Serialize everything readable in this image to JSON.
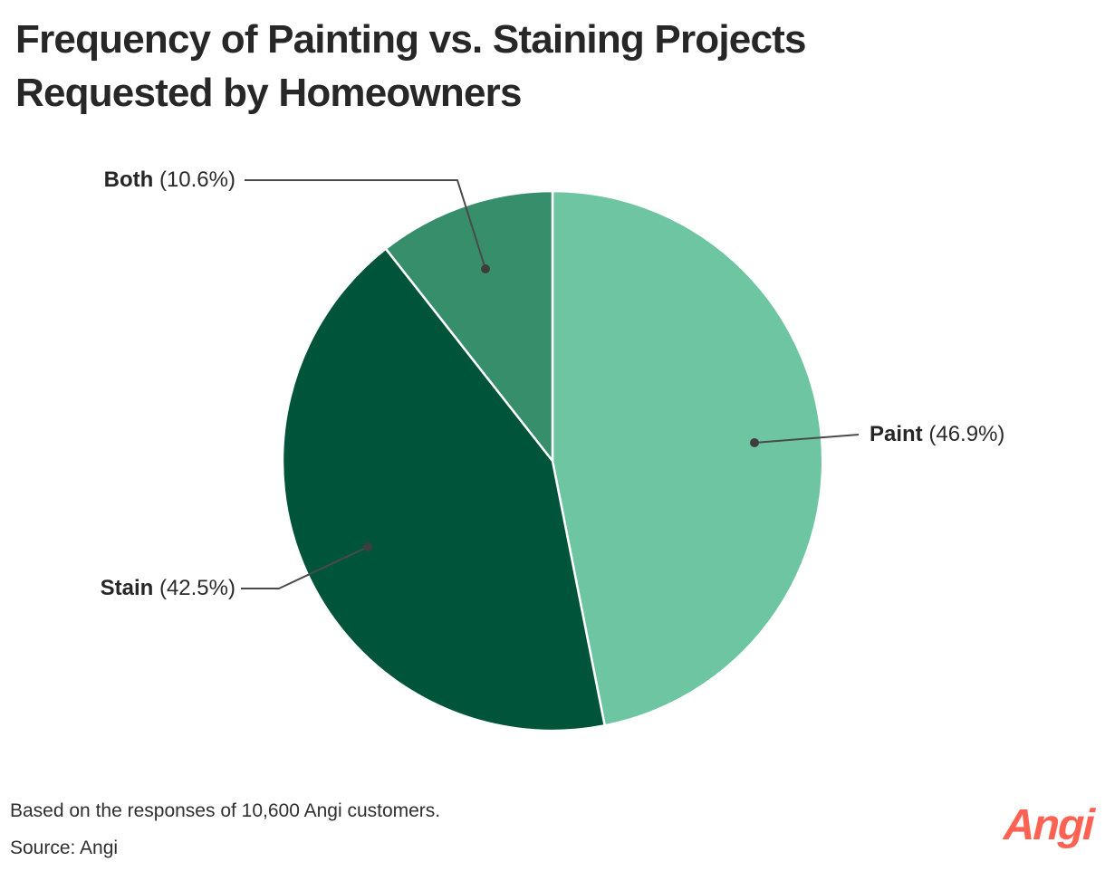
{
  "title": {
    "line1": "Frequency of Painting vs. Staining Projects",
    "line2": "Requested by Homeowners"
  },
  "chart_data": {
    "type": "pie",
    "title": "Frequency of Painting vs. Staining Projects Requested by Homeowners",
    "unit": "percent",
    "start_angle_deg": 0,
    "direction": "clockwise",
    "series": [
      {
        "name": "Paint",
        "value": 46.9,
        "color": "#6EC5A1"
      },
      {
        "name": "Stain",
        "value": 42.5,
        "color": "#00543A"
      },
      {
        "name": "Both",
        "value": 10.6,
        "color": "#378E6B"
      }
    ],
    "leader_line_color": "#4a4a4a",
    "slice_border_color": "#ffffff"
  },
  "callouts": {
    "both": {
      "name": "Both",
      "pct": "(10.6%)"
    },
    "paint": {
      "name": "Paint",
      "pct": "(46.9%)"
    },
    "stain": {
      "name": "Stain",
      "pct": "(42.5%)"
    }
  },
  "footer": {
    "note": "Based on the responses of 10,600 Angi customers.",
    "source": "Source: Angi"
  },
  "brand": {
    "logo_text": "Angi",
    "logo_color": "#FF6153"
  }
}
